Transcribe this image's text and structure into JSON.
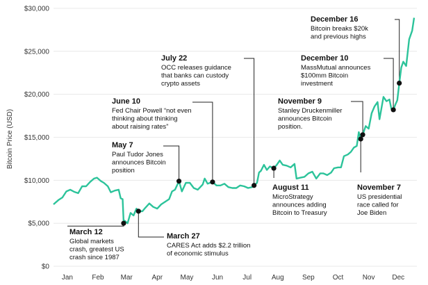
{
  "chart_data": {
    "type": "line",
    "title": "",
    "xlabel": "",
    "ylabel": "Bitcoin Price (USD)",
    "ylim": [
      0,
      30000
    ],
    "yticks": [
      {
        "value": 0,
        "label": "$0"
      },
      {
        "value": 5000,
        "label": "$5,000"
      },
      {
        "value": 10000,
        "label": "$10,000"
      },
      {
        "value": 15000,
        "label": "$15,000"
      },
      {
        "value": 20000,
        "label": "$20,000"
      },
      {
        "value": 25000,
        "label": "$25,000"
      },
      {
        "value": 30000,
        "label": "$30,000"
      }
    ],
    "xticks": [
      "Jan",
      "Feb",
      "Mar",
      "Apr",
      "May",
      "Jun",
      "Jul",
      "Aug",
      "Sep",
      "Oct",
      "Nov",
      "Dec"
    ],
    "line_color": "#2cc39a",
    "series": [
      {
        "points": [
          [
            "2020-01-01",
            7200
          ],
          [
            "2020-01-06",
            7700
          ],
          [
            "2020-01-10",
            8000
          ],
          [
            "2020-01-14",
            8700
          ],
          [
            "2020-01-18",
            8900
          ],
          [
            "2020-01-22",
            8650
          ],
          [
            "2020-01-26",
            8500
          ],
          [
            "2020-01-30",
            9300
          ],
          [
            "2020-02-03",
            9300
          ],
          [
            "2020-02-07",
            9800
          ],
          [
            "2020-02-11",
            10200
          ],
          [
            "2020-02-14",
            10300
          ],
          [
            "2020-02-18",
            9900
          ],
          [
            "2020-02-21",
            9700
          ],
          [
            "2020-02-25",
            9300
          ],
          [
            "2020-02-28",
            8600
          ],
          [
            "2020-03-03",
            8800
          ],
          [
            "2020-03-07",
            8900
          ],
          [
            "2020-03-09",
            7900
          ],
          [
            "2020-03-11",
            7800
          ],
          [
            "2020-03-12",
            5000
          ],
          [
            "2020-03-13",
            5300
          ],
          [
            "2020-03-16",
            5000
          ],
          [
            "2020-03-19",
            6200
          ],
          [
            "2020-03-22",
            5900
          ],
          [
            "2020-03-25",
            6700
          ],
          [
            "2020-03-27",
            6400
          ],
          [
            "2020-03-31",
            6400
          ],
          [
            "2020-04-03",
            6800
          ],
          [
            "2020-04-07",
            7300
          ],
          [
            "2020-04-11",
            6900
          ],
          [
            "2020-04-15",
            6700
          ],
          [
            "2020-04-19",
            7200
          ],
          [
            "2020-04-23",
            7500
          ],
          [
            "2020-04-27",
            7800
          ],
          [
            "2020-04-30",
            8700
          ],
          [
            "2020-05-03",
            8900
          ],
          [
            "2020-05-07",
            9900
          ],
          [
            "2020-05-10",
            8700
          ],
          [
            "2020-05-14",
            9700
          ],
          [
            "2020-05-18",
            9700
          ],
          [
            "2020-05-22",
            9100
          ],
          [
            "2020-05-26",
            8900
          ],
          [
            "2020-05-31",
            9500
          ],
          [
            "2020-06-02",
            10200
          ],
          [
            "2020-06-05",
            9600
          ],
          [
            "2020-06-10",
            9800
          ],
          [
            "2020-06-14",
            9400
          ],
          [
            "2020-06-18",
            9400
          ],
          [
            "2020-06-22",
            9600
          ],
          [
            "2020-06-26",
            9200
          ],
          [
            "2020-06-30",
            9100
          ],
          [
            "2020-07-04",
            9100
          ],
          [
            "2020-07-08",
            9400
          ],
          [
            "2020-07-12",
            9300
          ],
          [
            "2020-07-16",
            9100
          ],
          [
            "2020-07-20",
            9200
          ],
          [
            "2020-07-22",
            9400
          ],
          [
            "2020-07-25",
            9700
          ],
          [
            "2020-07-27",
            10900
          ],
          [
            "2020-07-29",
            11100
          ],
          [
            "2020-08-01",
            11800
          ],
          [
            "2020-08-04",
            11200
          ],
          [
            "2020-08-07",
            11600
          ],
          [
            "2020-08-11",
            11400
          ],
          [
            "2020-08-14",
            11800
          ],
          [
            "2020-08-17",
            12300
          ],
          [
            "2020-08-20",
            11800
          ],
          [
            "2020-08-24",
            11700
          ],
          [
            "2020-08-28",
            11500
          ],
          [
            "2020-09-01",
            11900
          ],
          [
            "2020-09-03",
            10200
          ],
          [
            "2020-09-07",
            10300
          ],
          [
            "2020-09-11",
            10400
          ],
          [
            "2020-09-15",
            10800
          ],
          [
            "2020-09-19",
            11000
          ],
          [
            "2020-09-23",
            10200
          ],
          [
            "2020-09-27",
            10800
          ],
          [
            "2020-09-30",
            10800
          ],
          [
            "2020-10-04",
            10600
          ],
          [
            "2020-10-08",
            10900
          ],
          [
            "2020-10-11",
            11400
          ],
          [
            "2020-10-15",
            11500
          ],
          [
            "2020-10-18",
            11500
          ],
          [
            "2020-10-21",
            12800
          ],
          [
            "2020-10-25",
            13000
          ],
          [
            "2020-10-28",
            13300
          ],
          [
            "2020-10-31",
            13800
          ],
          [
            "2020-11-03",
            14000
          ],
          [
            "2020-11-05",
            15600
          ],
          [
            "2020-11-07",
            14800
          ],
          [
            "2020-11-09",
            15300
          ],
          [
            "2020-11-12",
            16300
          ],
          [
            "2020-11-15",
            16000
          ],
          [
            "2020-11-18",
            17800
          ],
          [
            "2020-11-21",
            18600
          ],
          [
            "2020-11-24",
            19100
          ],
          [
            "2020-11-26",
            17100
          ],
          [
            "2020-11-30",
            19700
          ],
          [
            "2020-12-03",
            19200
          ],
          [
            "2020-12-06",
            19400
          ],
          [
            "2020-12-08",
            18300
          ],
          [
            "2020-12-10",
            18200
          ],
          [
            "2020-12-12",
            18800
          ],
          [
            "2020-12-14",
            19300
          ],
          [
            "2020-12-16",
            21300
          ],
          [
            "2020-12-18",
            23100
          ],
          [
            "2020-12-20",
            23800
          ],
          [
            "2020-12-23",
            23300
          ],
          [
            "2020-12-26",
            26400
          ],
          [
            "2020-12-29",
            27400
          ],
          [
            "2020-12-31",
            28900
          ]
        ]
      }
    ],
    "annotations": [
      {
        "date": "2020-03-12",
        "value": 5000,
        "title": "March 12",
        "lines": [
          "Global markets",
          "crash, greatest US",
          "crash since 1987"
        ]
      },
      {
        "date": "2020-03-27",
        "value": 6400,
        "title": "March 27",
        "lines": [
          "CARES Act adds $2.2 trillion",
          "of economic stimulus"
        ]
      },
      {
        "date": "2020-05-07",
        "value": 9900,
        "title": "May 7",
        "lines": [
          "Paul Tudor Jones",
          "announces Bitcoin",
          "position"
        ]
      },
      {
        "date": "2020-06-10",
        "value": 9800,
        "title": "June 10",
        "lines": [
          "Fed Chair Powell “not even",
          "thinking about thinking",
          "about raising rates”"
        ]
      },
      {
        "date": "2020-07-22",
        "value": 9400,
        "title": "July 22",
        "lines": [
          "OCC releases guidance",
          "that banks can custody",
          "crypto assets"
        ]
      },
      {
        "date": "2020-08-11",
        "value": 11400,
        "title": "August 11",
        "lines": [
          "MicroStrategy",
          "announces adding",
          "Bitcoin to Treasury"
        ]
      },
      {
        "date": "2020-11-07",
        "value": 14800,
        "title": "November 7",
        "lines": [
          "US presidential",
          "race called for",
          "Joe Biden"
        ]
      },
      {
        "date": "2020-11-09",
        "value": 15300,
        "title": "November 9",
        "lines": [
          "Stanley Druckenmiller",
          "announces Bitcoin",
          "position."
        ]
      },
      {
        "date": "2020-12-10",
        "value": 18200,
        "title": "December 10",
        "lines": [
          "MassMutual announces",
          "$100mm Bitcoin",
          "investment"
        ]
      },
      {
        "date": "2020-12-16",
        "value": 21300,
        "title": "December 16",
        "lines": [
          "Bitcoin breaks $20k",
          "and previous highs"
        ]
      }
    ]
  }
}
